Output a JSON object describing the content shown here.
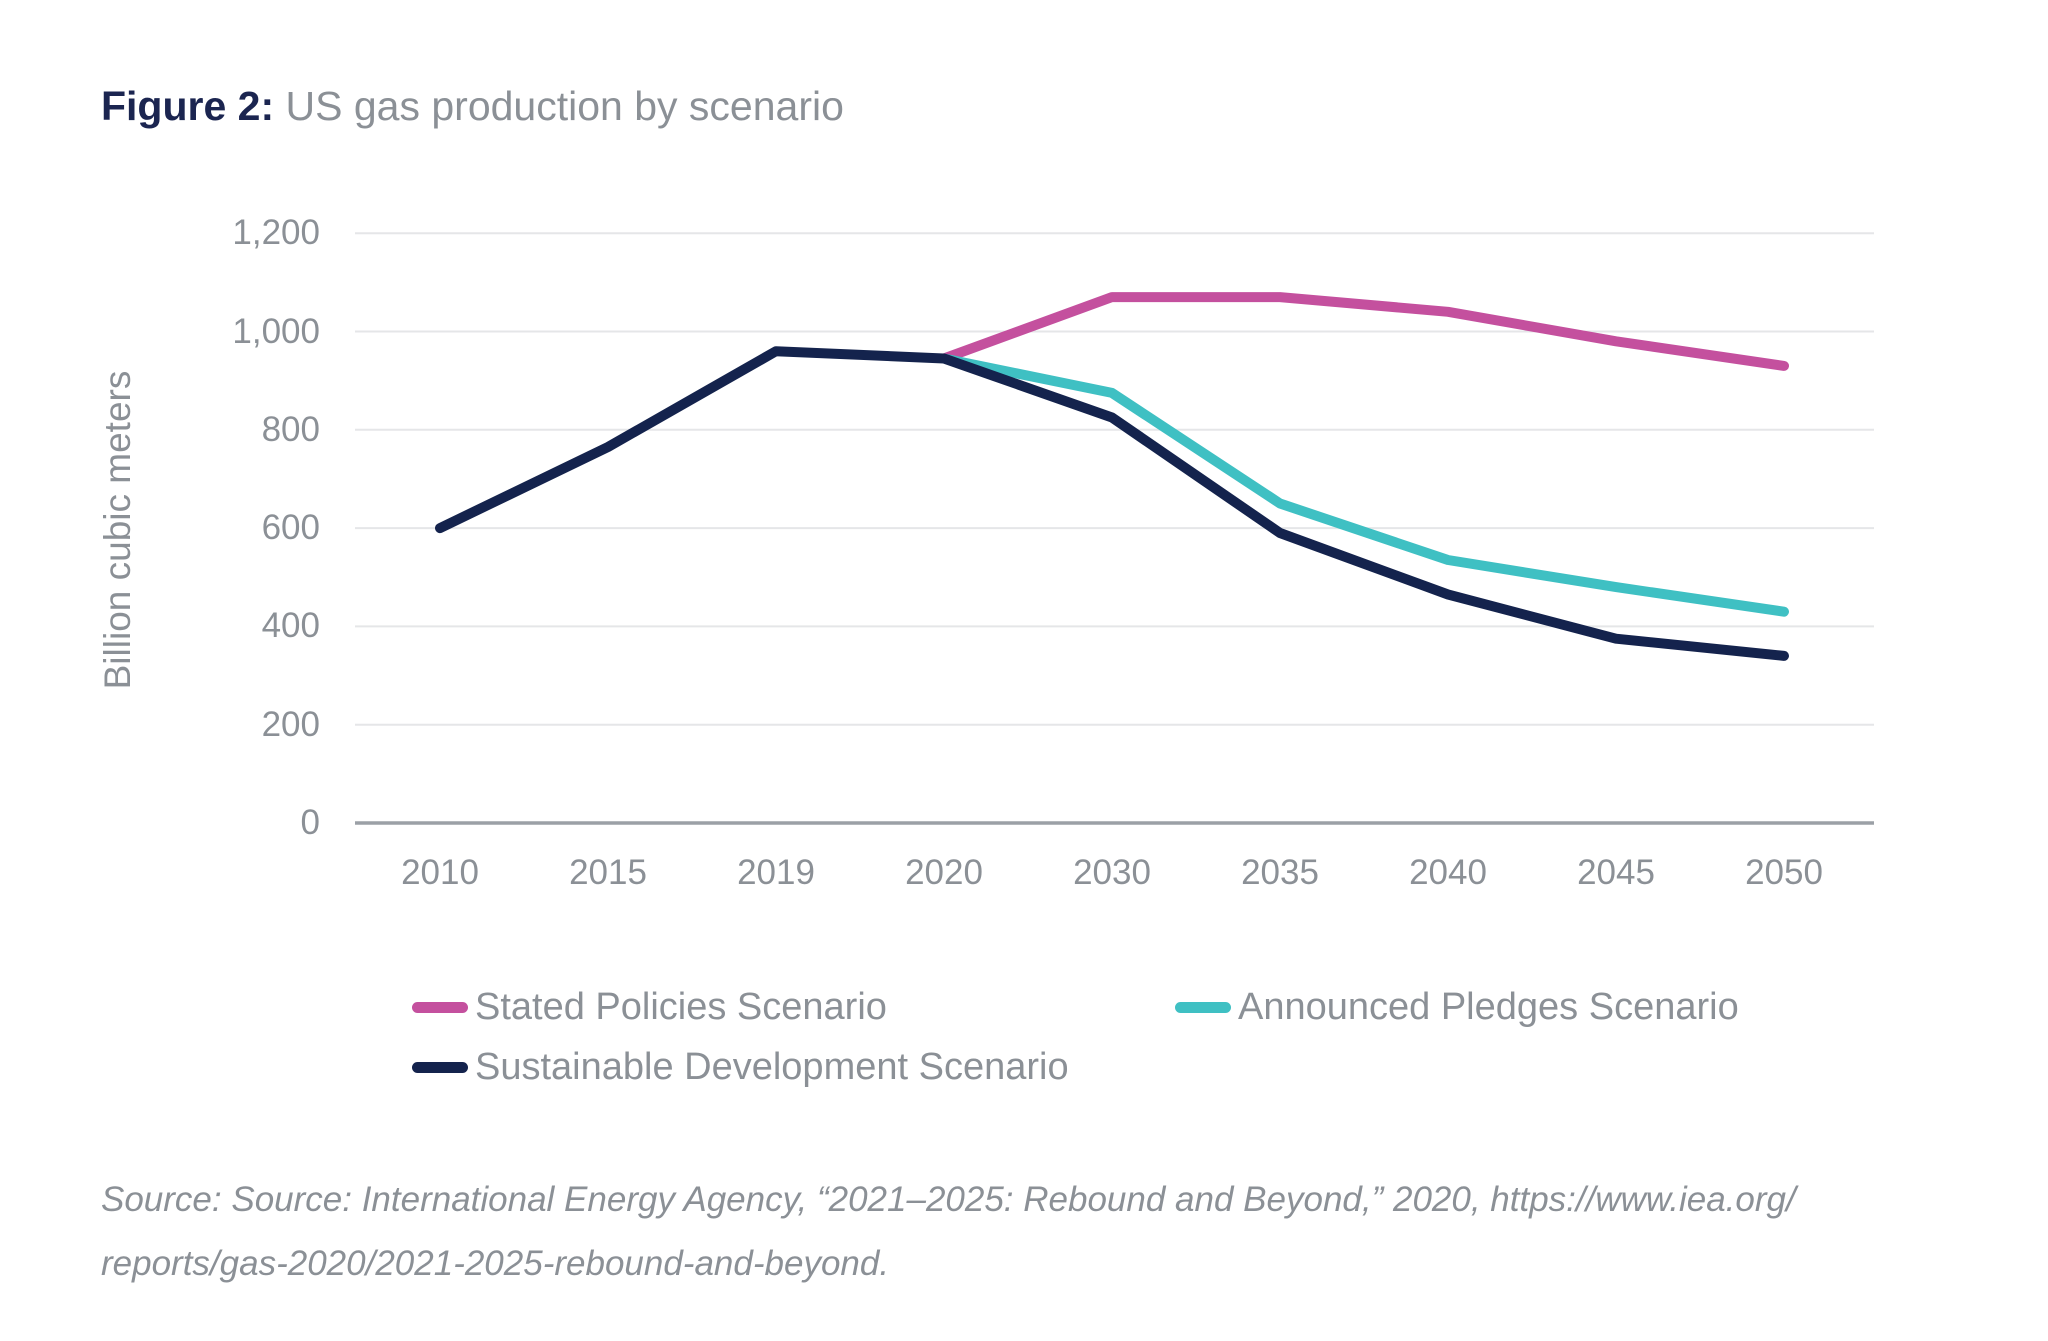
{
  "title": {
    "label": "Figure 2:",
    "caption": " US gas production by scenario"
  },
  "colors": {
    "pink": "#c4509e",
    "teal": "#3fc0c3",
    "navy": "#14234d",
    "title_navy": "#1b2550",
    "text_gray": "#8b9096",
    "gridline": "#e5e6e8",
    "axis": "#9ba0a6"
  },
  "chart_data": {
    "type": "line",
    "title": "Figure 2: US gas production by scenario",
    "xlabel": "",
    "ylabel": "Billion cubic meters",
    "ylim": [
      0,
      1200
    ],
    "grid": true,
    "legend_position": "bottom",
    "categories": [
      "2010",
      "2015",
      "2019",
      "2020",
      "2030",
      "2035",
      "2040",
      "2045",
      "2050"
    ],
    "y_ticks": [
      "0",
      "200",
      "400",
      "600",
      "800",
      "1,000",
      "1,200"
    ],
    "series": [
      {
        "name": "Stated Policies Scenario",
        "color": "#c4509e",
        "values": [
          null,
          null,
          null,
          945,
          1070,
          1070,
          1040,
          980,
          930
        ]
      },
      {
        "name": "Announced Pledges Scenario",
        "color": "#3fc0c3",
        "values": [
          null,
          null,
          null,
          945,
          875,
          650,
          535,
          480,
          430
        ]
      },
      {
        "name": "Sustainable Development Scenario",
        "color": "#14234d",
        "values": [
          600,
          765,
          960,
          945,
          825,
          590,
          465,
          375,
          340
        ]
      }
    ]
  },
  "source": {
    "line1": "Source: Source: International Energy Agency, “2021–2025: Rebound and Beyond,” 2020, https://www.iea.org/",
    "line2": "reports/gas-2020/2021-2025-rebound-and-beyond."
  }
}
